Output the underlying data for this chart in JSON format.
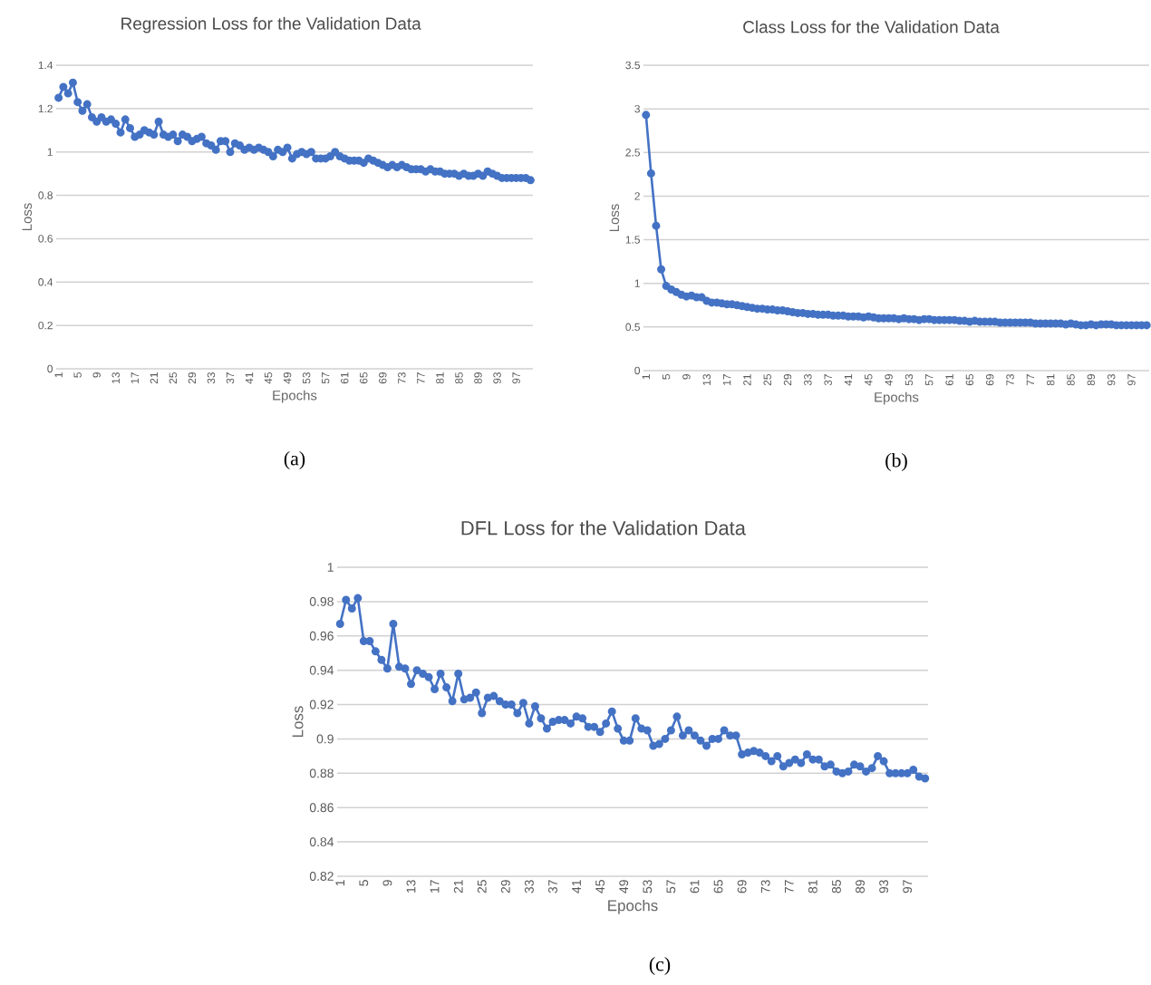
{
  "chart_data": [
    {
      "type": "line",
      "title": "Regression Loss for the Validation Data",
      "xlabel": "Epochs",
      "ylabel": "Loss",
      "annotations": [
        "(a)"
      ],
      "categories": [
        "1",
        null,
        null,
        null,
        "5",
        null,
        null,
        null,
        "9",
        null,
        null,
        null,
        "13",
        null,
        null,
        null,
        "17",
        null,
        null,
        null,
        "21",
        null,
        null,
        null,
        "25",
        null,
        null,
        null,
        "29",
        null,
        null,
        null,
        "33",
        null,
        null,
        null,
        "37",
        null,
        null,
        null,
        "41",
        null,
        null,
        null,
        "45",
        null,
        null,
        null,
        "49",
        null,
        null,
        null,
        "53",
        null,
        null,
        null,
        "57",
        null,
        null,
        null,
        "61",
        null,
        null,
        null,
        "65",
        null,
        null,
        null,
        "69",
        null,
        null,
        null,
        "73",
        null,
        null,
        null,
        "77",
        null,
        null,
        null,
        "81",
        null,
        null,
        null,
        "85",
        null,
        null,
        null,
        "89",
        null,
        null,
        null,
        "93",
        null,
        null,
        null,
        "97",
        null,
        null,
        null
      ],
      "series": [
        {
          "color": "#4472c4",
          "values": [
            1.25,
            1.3,
            1.27,
            1.32,
            1.23,
            1.19,
            1.22,
            1.16,
            1.14,
            1.16,
            1.14,
            1.15,
            1.13,
            1.09,
            1.15,
            1.11,
            1.07,
            1.08,
            1.1,
            1.09,
            1.08,
            1.14,
            1.08,
            1.07,
            1.08,
            1.05,
            1.08,
            1.07,
            1.05,
            1.06,
            1.07,
            1.04,
            1.03,
            1.01,
            1.05,
            1.05,
            1.0,
            1.04,
            1.03,
            1.01,
            1.02,
            1.01,
            1.02,
            1.01,
            1.0,
            0.98,
            1.01,
            1.0,
            1.02,
            0.97,
            0.99,
            1.0,
            0.99,
            1.0,
            0.97,
            0.97,
            0.97,
            0.98,
            1.0,
            0.98,
            0.97,
            0.96,
            0.96,
            0.96,
            0.95,
            0.97,
            0.96,
            0.95,
            0.94,
            0.93,
            0.94,
            0.93,
            0.94,
            0.93,
            0.92,
            0.92,
            0.92,
            0.91,
            0.92,
            0.91,
            0.91,
            0.9,
            0.9,
            0.9,
            0.89,
            0.9,
            0.89,
            0.89,
            0.9,
            0.89,
            0.91,
            0.9,
            0.89,
            0.88,
            0.88,
            0.88,
            0.88,
            0.88,
            0.88,
            0.87
          ]
        }
      ],
      "ylim": [
        0,
        1.4
      ],
      "yticks": [
        0,
        0.2,
        0.4,
        0.6,
        0.8,
        1,
        1.2,
        1.4
      ],
      "grid": "y",
      "marker": "circle",
      "line_style": "solid"
    },
    {
      "type": "line",
      "title": "Class Loss for the Validation Data",
      "xlabel": "Epochs",
      "ylabel": "Loss",
      "annotations": [
        "(b)"
      ],
      "categories": [
        "1",
        null,
        null,
        null,
        "5",
        null,
        null,
        null,
        "9",
        null,
        null,
        null,
        "13",
        null,
        null,
        null,
        "17",
        null,
        null,
        null,
        "21",
        null,
        null,
        null,
        "25",
        null,
        null,
        null,
        "29",
        null,
        null,
        null,
        "33",
        null,
        null,
        null,
        "37",
        null,
        null,
        null,
        "41",
        null,
        null,
        null,
        "45",
        null,
        null,
        null,
        "49",
        null,
        null,
        null,
        "53",
        null,
        null,
        null,
        "57",
        null,
        null,
        null,
        "61",
        null,
        null,
        null,
        "65",
        null,
        null,
        null,
        "69",
        null,
        null,
        null,
        "73",
        null,
        null,
        null,
        "77",
        null,
        null,
        null,
        "81",
        null,
        null,
        null,
        "85",
        null,
        null,
        null,
        "89",
        null,
        null,
        null,
        "93",
        null,
        null,
        null,
        "97",
        null,
        null,
        null
      ],
      "series": [
        {
          "color": "#4472c4",
          "values": [
            2.93,
            2.26,
            1.66,
            1.16,
            0.97,
            0.93,
            0.9,
            0.87,
            0.85,
            0.86,
            0.84,
            0.84,
            0.8,
            0.78,
            0.78,
            0.77,
            0.76,
            0.76,
            0.75,
            0.74,
            0.73,
            0.72,
            0.71,
            0.71,
            0.7,
            0.7,
            0.69,
            0.69,
            0.68,
            0.67,
            0.66,
            0.66,
            0.65,
            0.65,
            0.64,
            0.64,
            0.64,
            0.63,
            0.63,
            0.63,
            0.62,
            0.62,
            0.62,
            0.61,
            0.62,
            0.61,
            0.6,
            0.6,
            0.6,
            0.6,
            0.59,
            0.6,
            0.59,
            0.59,
            0.58,
            0.59,
            0.59,
            0.58,
            0.58,
            0.58,
            0.58,
            0.58,
            0.57,
            0.57,
            0.56,
            0.57,
            0.56,
            0.56,
            0.56,
            0.56,
            0.55,
            0.55,
            0.55,
            0.55,
            0.55,
            0.55,
            0.55,
            0.54,
            0.54,
            0.54,
            0.54,
            0.54,
            0.54,
            0.53,
            0.54,
            0.53,
            0.52,
            0.52,
            0.53,
            0.52,
            0.53,
            0.53,
            0.53,
            0.52,
            0.52,
            0.52,
            0.52,
            0.52,
            0.52,
            0.52
          ]
        }
      ],
      "ylim": [
        0,
        3.5
      ],
      "yticks": [
        0,
        0.5,
        1,
        1.5,
        2,
        2.5,
        3,
        3.5
      ],
      "grid": "y",
      "marker": "circle",
      "line_style": "solid"
    },
    {
      "type": "line",
      "title": "DFL Loss for the Validation Data",
      "xlabel": "Epochs",
      "ylabel": "Loss",
      "annotations": [
        "(c)"
      ],
      "categories": [
        "1",
        null,
        null,
        null,
        "5",
        null,
        null,
        null,
        "9",
        null,
        null,
        null,
        "13",
        null,
        null,
        null,
        "17",
        null,
        null,
        null,
        "21",
        null,
        null,
        null,
        "25",
        null,
        null,
        null,
        "29",
        null,
        null,
        null,
        "33",
        null,
        null,
        null,
        "37",
        null,
        null,
        null,
        "41",
        null,
        null,
        null,
        "45",
        null,
        null,
        null,
        "49",
        null,
        null,
        null,
        "53",
        null,
        null,
        null,
        "57",
        null,
        null,
        null,
        "61",
        null,
        null,
        null,
        "65",
        null,
        null,
        null,
        "69",
        null,
        null,
        null,
        "73",
        null,
        null,
        null,
        "77",
        null,
        null,
        null,
        "81",
        null,
        null,
        null,
        "85",
        null,
        null,
        null,
        "89",
        null,
        null,
        null,
        "93",
        null,
        null,
        null,
        "97",
        null,
        null,
        null
      ],
      "series": [
        {
          "color": "#4472c4",
          "values": [
            0.967,
            0.981,
            0.976,
            0.982,
            0.957,
            0.957,
            0.951,
            0.946,
            0.941,
            0.967,
            0.942,
            0.941,
            0.932,
            0.94,
            0.938,
            0.936,
            0.929,
            0.938,
            0.93,
            0.922,
            0.938,
            0.923,
            0.924,
            0.927,
            0.915,
            0.924,
            0.925,
            0.922,
            0.92,
            0.92,
            0.915,
            0.921,
            0.909,
            0.919,
            0.912,
            0.906,
            0.91,
            0.911,
            0.911,
            0.909,
            0.913,
            0.912,
            0.907,
            0.907,
            0.904,
            0.909,
            0.916,
            0.906,
            0.899,
            0.899,
            0.912,
            0.906,
            0.905,
            0.896,
            0.897,
            0.9,
            0.905,
            0.913,
            0.902,
            0.905,
            0.902,
            0.899,
            0.896,
            0.9,
            0.9,
            0.905,
            0.902,
            0.902,
            0.891,
            0.892,
            0.893,
            0.892,
            0.89,
            0.887,
            0.89,
            0.884,
            0.886,
            0.888,
            0.886,
            0.891,
            0.888,
            0.888,
            0.884,
            0.885,
            0.881,
            0.88,
            0.881,
            0.885,
            0.884,
            0.881,
            0.883,
            0.89,
            0.887,
            0.88,
            0.88,
            0.88,
            0.88,
            0.882,
            0.878,
            0.877
          ]
        }
      ],
      "ylim": [
        0.82,
        1
      ],
      "yticks": [
        0.82,
        0.84,
        0.86,
        0.88,
        0.9,
        0.92,
        0.94,
        0.96,
        0.98,
        1
      ],
      "grid": "y",
      "marker": "circle",
      "line_style": "solid"
    }
  ]
}
